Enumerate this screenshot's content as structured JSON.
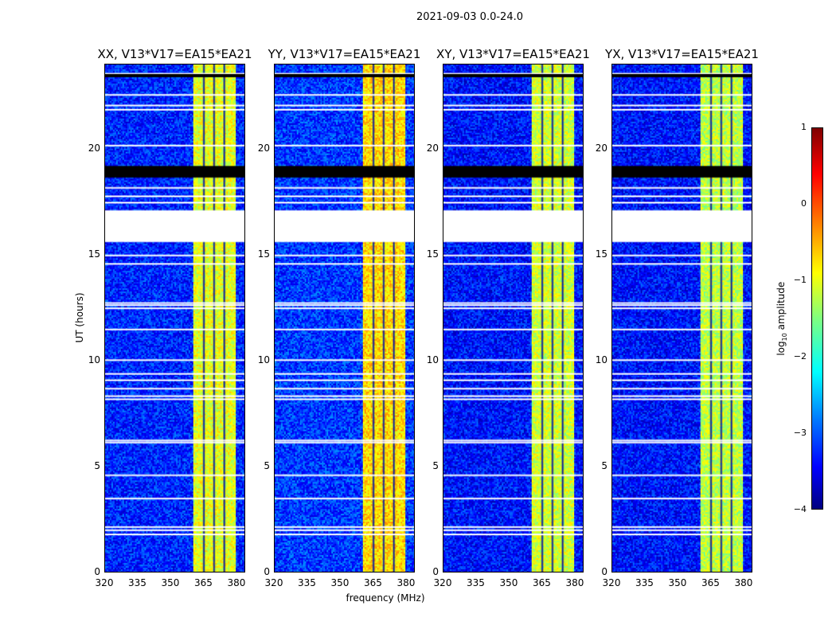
{
  "suptitle": "2021-09-03 0.0-24.0",
  "colorbar": {
    "label_main": "log",
    "label_sub": "10",
    "label_tail": " amplitude",
    "ticks": [
      "1",
      "0",
      "−1",
      "−2",
      "−3",
      "−4"
    ],
    "range": [
      -4,
      1
    ]
  },
  "chart_data": {
    "type": "heatmap",
    "title": "2021-09-03 0.0-24.0",
    "xlabel": "frequency (MHz)",
    "ylabel": "UT (hours)",
    "xlim": [
      320,
      384
    ],
    "ylim": [
      0,
      24
    ],
    "xticks": [
      "320",
      "335",
      "350",
      "365",
      "380"
    ],
    "yticks": [
      "0",
      "5",
      "10",
      "15",
      "20"
    ],
    "colorscale": "jet",
    "zlim": [
      -4,
      1
    ],
    "panels": [
      {
        "title": "XX, V13*V17=EA15*EA21",
        "background_level": -3.2,
        "band_level": -1.0
      },
      {
        "title": "YY, V13*V17=EA15*EA21",
        "background_level": -3.1,
        "band_level": -0.7
      },
      {
        "title": "XY, V13*V17=EA15*EA21",
        "background_level": -3.3,
        "band_level": -1.1
      },
      {
        "title": "YX, V13*V17=EA15*EA21",
        "background_level": -3.3,
        "band_level": -1.2
      }
    ],
    "strong_band_MHz": [
      360,
      380
    ],
    "band_dropout_lines_MHz": [
      365,
      369.7,
      374.4
    ],
    "blank_intervals_hours": [
      [
        15.6,
        17.1
      ]
    ],
    "flagged_black_hours": [
      [
        18.65,
        19.2
      ],
      [
        23.4,
        23.55
      ]
    ],
    "flag_lines_hours": [
      1.8,
      2.0,
      2.15,
      3.5,
      4.6,
      6.15,
      6.25,
      8.2,
      8.35,
      8.7,
      9.1,
      9.4,
      10.05,
      11.5,
      12.5,
      12.65,
      12.75,
      14.6,
      15.0,
      17.5,
      17.8,
      18.2,
      20.2,
      21.9,
      22.1,
      22.6,
      23.6
    ]
  }
}
